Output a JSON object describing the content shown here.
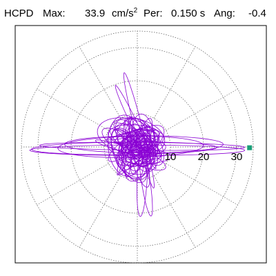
{
  "header": {
    "station": "HCPD",
    "max_label": "Max:",
    "max_value": "33.9",
    "max_unit": "cm/s",
    "max_unit_exp": "2",
    "per_label": "Per:",
    "per_value": "0.150 s",
    "ang_label": "Ang:",
    "ang_value": "-0.4"
  },
  "chart_data": {
    "type": "polar-orbit",
    "radial_ticks": [
      10,
      20,
      30
    ],
    "radial_tick_labels": [
      "10",
      "20",
      "30"
    ],
    "rmax": 35,
    "spoke_step_deg": 30,
    "grid": true,
    "trace_color": "#8a00d4",
    "marker_color": "#1a9e78",
    "marker": {
      "amplitude": 33.9,
      "angle_deg": -0.4
    }
  }
}
